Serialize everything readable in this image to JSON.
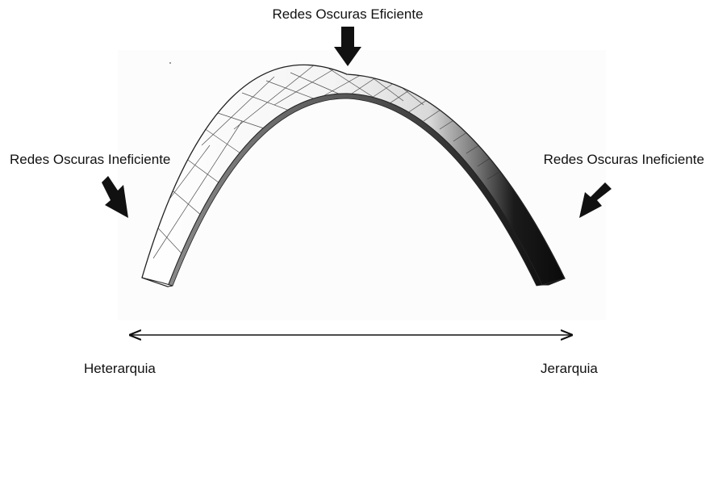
{
  "labels": {
    "top": "Redes Oscuras Eficiente",
    "left": "Redes Oscuras Ineficiente",
    "right": "Redes Oscuras Ineficiente"
  },
  "axis": {
    "left_end": "Heterarquia",
    "right_end": "Jerarquia"
  }
}
